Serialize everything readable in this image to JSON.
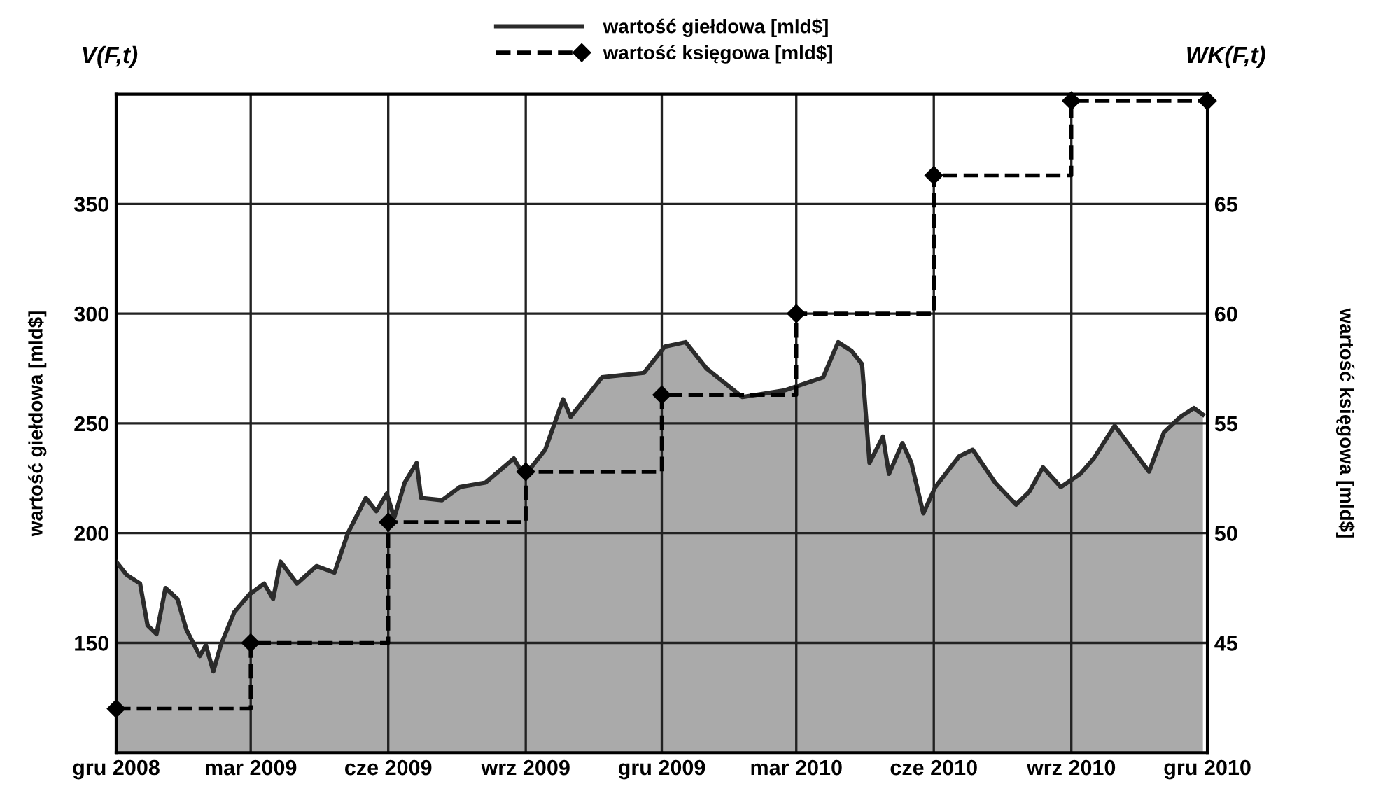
{
  "chart_data": {
    "type": "area",
    "ylabel": "wartość giełdowa [mld$]",
    "y2label": "wartość księgowa [mld$]",
    "annotations": [
      "V(F,t)",
      "WK(F,t)"
    ],
    "xlim": [
      "2008-12-01",
      "2010-12-01"
    ],
    "xticks": [
      {
        "value": "2008-12-01",
        "label": "gru 2008"
      },
      {
        "value": "2009-03-01",
        "label": "mar 2009"
      },
      {
        "value": "2009-06-01",
        "label": "cze 2009"
      },
      {
        "value": "2009-09-01",
        "label": "wrz 2009"
      },
      {
        "value": "2009-12-01",
        "label": "gru 2009"
      },
      {
        "value": "2010-03-01",
        "label": "mar 2010"
      },
      {
        "value": "2010-06-01",
        "label": "cze 2010"
      },
      {
        "value": "2010-09-01",
        "label": "wrz 2010"
      },
      {
        "value": "2010-12-01",
        "label": "gru 2010"
      }
    ],
    "ylim": [
      100,
      400
    ],
    "yticks": [
      150,
      200,
      250,
      300,
      350
    ],
    "y2lim": [
      40,
      70
    ],
    "y2ticks": [
      45,
      50,
      55,
      60,
      65
    ],
    "grid": true,
    "legend": "top",
    "series": [
      {
        "name": "wartość giełdowa [mld$]",
        "color": "#2b2b2b",
        "line_style": "solid",
        "marker": "none",
        "x": [
          "2008-12-01",
          "2008-12-08",
          "2008-12-17",
          "2008-12-22",
          "2008-12-28",
          "2009-01-03",
          "2009-01-11",
          "2009-01-17",
          "2009-01-26",
          "2009-01-30",
          "2009-02-04",
          "2009-02-09",
          "2009-02-18",
          "2009-02-28",
          "2009-03-10",
          "2009-03-16",
          "2009-03-21",
          "2009-04-01",
          "2009-04-14",
          "2009-04-26",
          "2009-05-05",
          "2009-05-17",
          "2009-05-24",
          "2009-05-31",
          "2009-06-05",
          "2009-06-12",
          "2009-06-20",
          "2009-06-23",
          "2009-07-07",
          "2009-07-19",
          "2009-08-05",
          "2009-08-24",
          "2009-08-31",
          "2009-09-14",
          "2009-09-26",
          "2009-10-01",
          "2009-10-22",
          "2009-11-19",
          "2009-12-03",
          "2009-12-17",
          "2009-12-31",
          "2010-01-24",
          "2010-02-21",
          "2010-03-19",
          "2010-03-29",
          "2010-04-07",
          "2010-04-14",
          "2010-04-19",
          "2010-04-28",
          "2010-05-02",
          "2010-05-11",
          "2010-05-17",
          "2010-05-25",
          "2010-06-02",
          "2010-06-18",
          "2010-06-27",
          "2010-07-12",
          "2010-07-26",
          "2010-08-04",
          "2010-08-13",
          "2010-08-25",
          "2010-09-07",
          "2010-09-16",
          "2010-09-30",
          "2010-10-12",
          "2010-10-23",
          "2010-11-02",
          "2010-11-13",
          "2010-11-22",
          "2010-11-28"
        ],
        "values": [
          187,
          181,
          177,
          158,
          154,
          175,
          170,
          156,
          144,
          149,
          137,
          149,
          164,
          172,
          177,
          170,
          187,
          177,
          185,
          182,
          200,
          216,
          210,
          218,
          207,
          223,
          232,
          216,
          215,
          221,
          223,
          234,
          226,
          238,
          261,
          253,
          271,
          273,
          285,
          287,
          275,
          262,
          265,
          271,
          287,
          283,
          277,
          232,
          244,
          227,
          241,
          232,
          209,
          221,
          235,
          238,
          223,
          213,
          219,
          230,
          221,
          227,
          234,
          249,
          238,
          228,
          246,
          253,
          257,
          254
        ]
      },
      {
        "name": "wartość księgowa [mld$]",
        "type": "step",
        "axis": "y2",
        "color": "#000000",
        "line_style": "dashed",
        "marker": "diamond",
        "x": [
          "2008-12-01",
          "2009-03-01",
          "2009-06-01",
          "2009-09-01",
          "2009-12-01",
          "2010-03-01",
          "2010-06-01",
          "2010-09-01",
          "2010-12-01"
        ],
        "values": [
          42,
          45,
          50.5,
          52.8,
          56.3,
          60,
          66.3,
          69.7,
          69.7
        ]
      }
    ]
  }
}
